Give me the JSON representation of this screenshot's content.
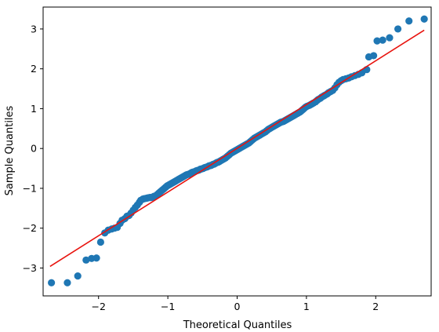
{
  "chart_data": {
    "type": "scatter",
    "title": "",
    "xlabel": "Theoretical Quantiles",
    "ylabel": "Sample Quantiles",
    "xlim": [
      -2.8,
      2.8
    ],
    "ylim": [
      -3.7,
      3.55
    ],
    "xticks": [
      -2,
      -1,
      0,
      1,
      2
    ],
    "yticks": [
      -3,
      -2,
      -1,
      0,
      1,
      2,
      3
    ],
    "xtick_labels": [
      "−2",
      "−1",
      "0",
      "1",
      "2"
    ],
    "ytick_labels": [
      "−3",
      "−2",
      "−1",
      "0",
      "1",
      "2",
      "3"
    ],
    "grid": false,
    "legend": "none",
    "colors": {
      "points": "#1f77b4",
      "line": "#e8130e",
      "axes": "#000000",
      "background": "#ffffff"
    },
    "series": [
      {
        "type": "scatter",
        "points": [
          [
            -2.68,
            -3.37
          ],
          [
            -2.45,
            -3.37
          ],
          [
            -2.3,
            -3.2
          ],
          [
            -2.18,
            -2.8
          ],
          [
            -2.1,
            -2.76
          ],
          [
            -2.03,
            -2.75
          ],
          [
            -1.97,
            -2.35
          ],
          [
            -1.91,
            -2.12
          ],
          [
            -1.86,
            -2.05
          ],
          [
            -1.81,
            -2.02
          ],
          [
            -1.77,
            -2.0
          ],
          [
            -1.73,
            -1.98
          ],
          [
            -1.69,
            -1.88
          ],
          [
            -1.66,
            -1.8
          ],
          [
            -1.62,
            -1.76
          ],
          [
            -1.59,
            -1.7
          ],
          [
            -1.56,
            -1.68
          ],
          [
            -1.53,
            -1.62
          ],
          [
            -1.5,
            -1.55
          ],
          [
            -1.47,
            -1.48
          ],
          [
            -1.44,
            -1.42
          ],
          [
            -1.41,
            -1.35
          ],
          [
            -1.39,
            -1.3
          ],
          [
            -1.36,
            -1.27
          ],
          [
            -1.34,
            -1.26
          ],
          [
            -1.31,
            -1.25
          ],
          [
            -1.29,
            -1.24
          ],
          [
            -1.26,
            -1.23
          ],
          [
            -1.24,
            -1.23
          ],
          [
            -1.22,
            -1.22
          ],
          [
            -1.2,
            -1.2
          ],
          [
            -1.17,
            -1.18
          ],
          [
            -1.15,
            -1.15
          ],
          [
            -1.13,
            -1.12
          ],
          [
            -1.11,
            -1.09
          ],
          [
            -1.09,
            -1.06
          ],
          [
            -1.07,
            -1.03
          ],
          [
            -1.05,
            -1.0
          ],
          [
            -1.03,
            -0.97
          ],
          [
            -1.01,
            -0.94
          ],
          [
            -0.99,
            -0.92
          ],
          [
            -0.97,
            -0.9
          ],
          [
            -0.95,
            -0.88
          ],
          [
            -0.93,
            -0.86
          ],
          [
            -0.91,
            -0.84
          ],
          [
            -0.89,
            -0.82
          ],
          [
            -0.87,
            -0.8
          ],
          [
            -0.85,
            -0.78
          ],
          [
            -0.83,
            -0.76
          ],
          [
            -0.81,
            -0.74
          ],
          [
            -0.79,
            -0.72
          ],
          [
            -0.77,
            -0.7
          ],
          [
            -0.75,
            -0.68
          ],
          [
            -0.73,
            -0.66
          ],
          [
            -0.71,
            -0.65
          ],
          [
            -0.69,
            -0.64
          ],
          [
            -0.67,
            -0.62
          ],
          [
            -0.65,
            -0.6
          ],
          [
            -0.63,
            -0.59
          ],
          [
            -0.61,
            -0.58
          ],
          [
            -0.59,
            -0.56
          ],
          [
            -0.57,
            -0.55
          ],
          [
            -0.55,
            -0.54
          ],
          [
            -0.53,
            -0.52
          ],
          [
            -0.51,
            -0.51
          ],
          [
            -0.49,
            -0.5
          ],
          [
            -0.47,
            -0.48
          ],
          [
            -0.45,
            -0.47
          ],
          [
            -0.43,
            -0.46
          ],
          [
            -0.41,
            -0.44
          ],
          [
            -0.39,
            -0.43
          ],
          [
            -0.37,
            -0.42
          ],
          [
            -0.35,
            -0.4
          ],
          [
            -0.33,
            -0.39
          ],
          [
            -0.31,
            -0.37
          ],
          [
            -0.29,
            -0.35
          ],
          [
            -0.27,
            -0.34
          ],
          [
            -0.25,
            -0.32
          ],
          [
            -0.23,
            -0.3
          ],
          [
            -0.21,
            -0.28
          ],
          [
            -0.19,
            -0.26
          ],
          [
            -0.17,
            -0.24
          ],
          [
            -0.15,
            -0.21
          ],
          [
            -0.13,
            -0.18
          ],
          [
            -0.11,
            -0.15
          ],
          [
            -0.09,
            -0.12
          ],
          [
            -0.07,
            -0.1
          ],
          [
            -0.05,
            -0.08
          ],
          [
            -0.03,
            -0.06
          ],
          [
            -0.01,
            -0.04
          ],
          [
            0.01,
            -0.02
          ],
          [
            0.03,
            0.0
          ],
          [
            0.05,
            0.02
          ],
          [
            0.07,
            0.04
          ],
          [
            0.09,
            0.06
          ],
          [
            0.11,
            0.08
          ],
          [
            0.13,
            0.1
          ],
          [
            0.15,
            0.12
          ],
          [
            0.17,
            0.14
          ],
          [
            0.19,
            0.17
          ],
          [
            0.21,
            0.2
          ],
          [
            0.23,
            0.23
          ],
          [
            0.25,
            0.26
          ],
          [
            0.27,
            0.28
          ],
          [
            0.29,
            0.3
          ],
          [
            0.31,
            0.32
          ],
          [
            0.33,
            0.34
          ],
          [
            0.35,
            0.36
          ],
          [
            0.37,
            0.38
          ],
          [
            0.39,
            0.4
          ],
          [
            0.41,
            0.42
          ],
          [
            0.43,
            0.45
          ],
          [
            0.45,
            0.48
          ],
          [
            0.47,
            0.5
          ],
          [
            0.49,
            0.52
          ],
          [
            0.51,
            0.54
          ],
          [
            0.53,
            0.56
          ],
          [
            0.55,
            0.58
          ],
          [
            0.57,
            0.6
          ],
          [
            0.59,
            0.62
          ],
          [
            0.61,
            0.64
          ],
          [
            0.63,
            0.66
          ],
          [
            0.65,
            0.67
          ],
          [
            0.67,
            0.68
          ],
          [
            0.69,
            0.7
          ],
          [
            0.71,
            0.72
          ],
          [
            0.73,
            0.74
          ],
          [
            0.75,
            0.76
          ],
          [
            0.77,
            0.78
          ],
          [
            0.79,
            0.8
          ],
          [
            0.81,
            0.82
          ],
          [
            0.83,
            0.84
          ],
          [
            0.85,
            0.86
          ],
          [
            0.87,
            0.88
          ],
          [
            0.89,
            0.9
          ],
          [
            0.91,
            0.92
          ],
          [
            0.93,
            0.95
          ],
          [
            0.95,
            0.98
          ],
          [
            0.97,
            1.01
          ],
          [
            0.99,
            1.04
          ],
          [
            1.01,
            1.06
          ],
          [
            1.04,
            1.08
          ],
          [
            1.06,
            1.1
          ],
          [
            1.08,
            1.12
          ],
          [
            1.1,
            1.14
          ],
          [
            1.13,
            1.17
          ],
          [
            1.15,
            1.2
          ],
          [
            1.17,
            1.23
          ],
          [
            1.2,
            1.26
          ],
          [
            1.22,
            1.29
          ],
          [
            1.25,
            1.32
          ],
          [
            1.27,
            1.34
          ],
          [
            1.3,
            1.37
          ],
          [
            1.32,
            1.4
          ],
          [
            1.35,
            1.43
          ],
          [
            1.38,
            1.46
          ],
          [
            1.41,
            1.52
          ],
          [
            1.44,
            1.6
          ],
          [
            1.47,
            1.66
          ],
          [
            1.5,
            1.7
          ],
          [
            1.53,
            1.73
          ],
          [
            1.57,
            1.75
          ],
          [
            1.61,
            1.77
          ],
          [
            1.65,
            1.8
          ],
          [
            1.7,
            1.83
          ],
          [
            1.75,
            1.86
          ],
          [
            1.8,
            1.9
          ],
          [
            1.87,
            1.98
          ],
          [
            1.9,
            2.3
          ],
          [
            1.97,
            2.33
          ],
          [
            2.02,
            2.7
          ],
          [
            2.1,
            2.72
          ],
          [
            2.2,
            2.78
          ],
          [
            2.32,
            3.0
          ],
          [
            2.48,
            3.2
          ],
          [
            2.7,
            3.25
          ]
        ]
      },
      {
        "type": "line",
        "points": [
          [
            -2.7,
            -2.96
          ],
          [
            2.7,
            2.97
          ]
        ]
      }
    ]
  }
}
